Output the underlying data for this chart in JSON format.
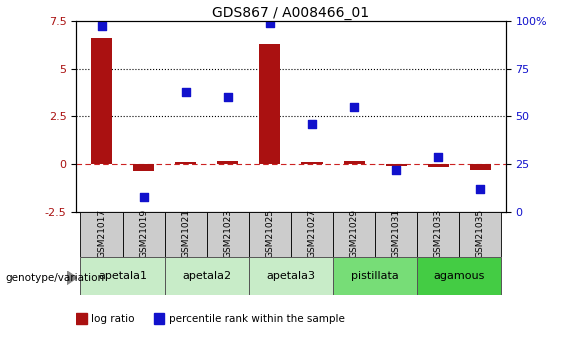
{
  "title": "GDS867 / A008466_01",
  "samples": [
    "GSM21017",
    "GSM21019",
    "GSM21021",
    "GSM21023",
    "GSM21025",
    "GSM21027",
    "GSM21029",
    "GSM21031",
    "GSM21033",
    "GSM21035"
  ],
  "log_ratio": [
    6.6,
    -0.35,
    0.12,
    0.18,
    6.3,
    0.12,
    0.15,
    -0.08,
    -0.12,
    -0.28
  ],
  "percentile_rank": [
    97,
    8,
    63,
    60,
    99,
    46,
    55,
    22,
    29,
    12
  ],
  "groups": [
    {
      "label": "apetala1",
      "indices": [
        0,
        1
      ],
      "color": "#c8ecc8"
    },
    {
      "label": "apetala2",
      "indices": [
        2,
        3
      ],
      "color": "#c8ecc8"
    },
    {
      "label": "apetala3",
      "indices": [
        4,
        5
      ],
      "color": "#c8ecc8"
    },
    {
      "label": "pistillata",
      "indices": [
        6,
        7
      ],
      "color": "#77dd77"
    },
    {
      "label": "agamous",
      "indices": [
        8,
        9
      ],
      "color": "#44cc44"
    }
  ],
  "ylim_left": [
    -2.5,
    7.5
  ],
  "ylim_right": [
    0,
    100
  ],
  "yticks_left": [
    -2.5,
    0,
    2.5,
    5,
    7.5
  ],
  "yticks_right": [
    0,
    25,
    50,
    75,
    100
  ],
  "hlines_dotted": [
    2.5,
    5.0
  ],
  "bar_color": "#aa1111",
  "dot_color": "#1111cc",
  "bar_width": 0.5,
  "dot_size": 35,
  "genotype_label": "genotype/variation",
  "legend_bar_label": "log ratio",
  "legend_dot_label": "percentile rank within the sample",
  "sample_box_color": "#cccccc",
  "zero_line_color": "#cc2222"
}
